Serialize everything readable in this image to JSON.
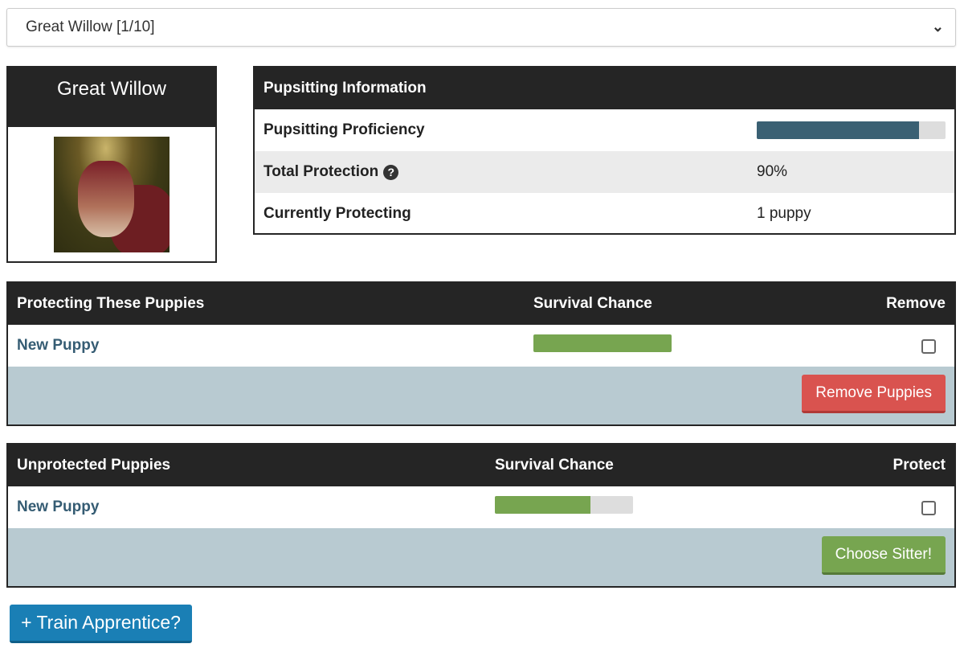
{
  "selector": {
    "value": "Great Willow [1/10]"
  },
  "wolf": {
    "name": "Great Willow"
  },
  "info": {
    "title": "Pupsitting Information",
    "rows": [
      {
        "label": "Pupsitting Proficiency",
        "progress_percent": 86
      },
      {
        "label": "Total Protection",
        "value": "90%",
        "icon": "question-circle-icon"
      },
      {
        "label": "Currently Protecting",
        "value": "1 puppy"
      }
    ]
  },
  "protecting": {
    "headers": [
      "Protecting These Puppies",
      "Survival Chance",
      "Remove"
    ],
    "rows": [
      {
        "name": "New Puppy",
        "survival_percent": 100,
        "checked": false
      }
    ],
    "button": "Remove Puppies"
  },
  "unprotected": {
    "headers": [
      "Unprotected Puppies",
      "Survival Chance",
      "Protect"
    ],
    "rows": [
      {
        "name": "New Puppy",
        "survival_percent": 69,
        "checked": false
      }
    ],
    "button": "Choose Sitter!"
  },
  "train_button": "+ Train Apprentice?",
  "colors": {
    "proficiency": "#3a6073",
    "survival": "#77a550",
    "danger": "#d9534f",
    "accent": "#1a7fb5",
    "footer": "#b8cad1"
  }
}
